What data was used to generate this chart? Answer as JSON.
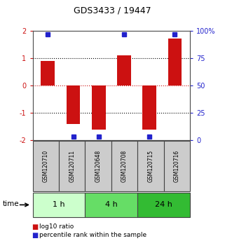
{
  "title": "GDS3433 / 19447",
  "samples": [
    "GSM120710",
    "GSM120711",
    "GSM120648",
    "GSM120708",
    "GSM120715",
    "GSM120716"
  ],
  "log10_ratios": [
    0.9,
    -1.42,
    -1.62,
    1.12,
    -1.62,
    1.72
  ],
  "percentile_ranks": [
    97,
    3,
    3,
    97,
    3,
    97
  ],
  "bar_color": "#cc1111",
  "dot_color": "#2222cc",
  "ylim": [
    -2,
    2
  ],
  "ylim_right": [
    0,
    100
  ],
  "yticks_left": [
    -2,
    -1,
    0,
    1,
    2
  ],
  "yticks_right": [
    0,
    25,
    50,
    75,
    100
  ],
  "ytick_labels_right": [
    "0",
    "25",
    "50",
    "75",
    "100%"
  ],
  "hline_dotted": [
    -1,
    1
  ],
  "hline_red_dotted": 0,
  "time_groups": [
    {
      "label": "1 h",
      "start": 0,
      "end": 2,
      "color": "#ccffcc"
    },
    {
      "label": "4 h",
      "start": 2,
      "end": 4,
      "color": "#66dd66"
    },
    {
      "label": "24 h",
      "start": 4,
      "end": 6,
      "color": "#33bb33"
    }
  ],
  "sample_box_color": "#cccccc",
  "sample_box_edge": "#444444",
  "legend_items": [
    {
      "label": "log10 ratio",
      "color": "#cc1111"
    },
    {
      "label": "percentile rank within the sample",
      "color": "#2222cc"
    }
  ],
  "bar_width": 0.55,
  "xlabel_time": "time",
  "bg_color": "#ffffff",
  "title_fontsize": 9,
  "tick_fontsize": 7,
  "sample_fontsize": 5.5,
  "time_fontsize": 8,
  "legend_fontsize": 6.5
}
